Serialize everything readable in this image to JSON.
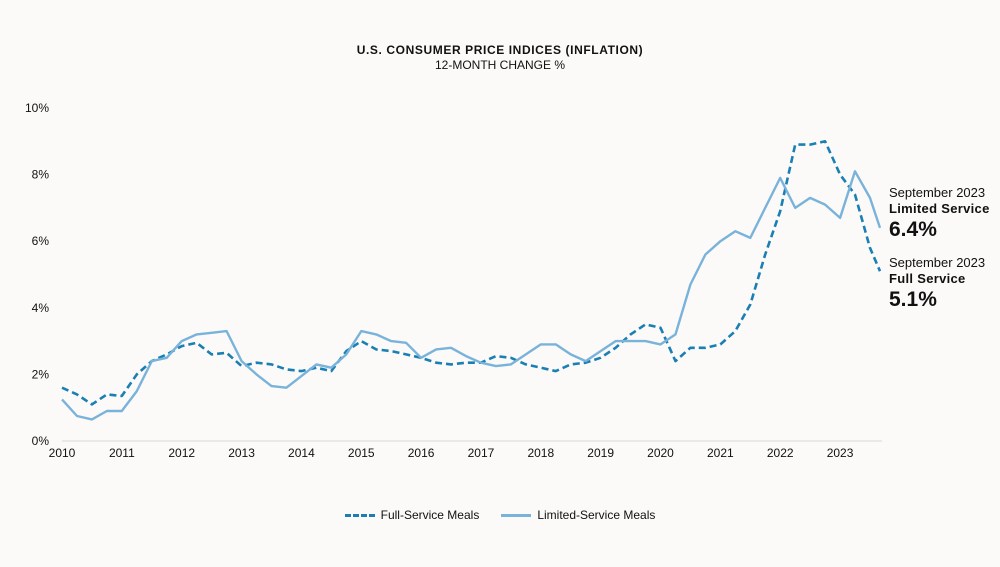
{
  "chart_data": {
    "type": "line",
    "title": "U.S. CONSUMER PRICE INDICES (INFLATION)",
    "subtitle": "12-MONTH CHANGE %",
    "xlabel": "",
    "ylabel": "",
    "ylim": [
      0,
      10
    ],
    "xlim": [
      "2010-01",
      "2023-09"
    ],
    "yticks": [
      "0%",
      "2%",
      "4%",
      "6%",
      "8%",
      "10%"
    ],
    "xticks": [
      "2010",
      "2011",
      "2012",
      "2013",
      "2014",
      "2015",
      "2016",
      "2017",
      "2018",
      "2019",
      "2020",
      "2021",
      "2022",
      "2023"
    ],
    "grid": false,
    "legend_position": "bottom",
    "x": [
      "2010-01",
      "2010-04",
      "2010-07",
      "2010-10",
      "2011-01",
      "2011-04",
      "2011-07",
      "2011-10",
      "2012-01",
      "2012-04",
      "2012-07",
      "2012-10",
      "2013-01",
      "2013-04",
      "2013-07",
      "2013-10",
      "2014-01",
      "2014-04",
      "2014-07",
      "2014-10",
      "2015-01",
      "2015-04",
      "2015-07",
      "2015-10",
      "2016-01",
      "2016-04",
      "2016-07",
      "2016-10",
      "2017-01",
      "2017-04",
      "2017-07",
      "2017-10",
      "2018-01",
      "2018-04",
      "2018-07",
      "2018-10",
      "2019-01",
      "2019-04",
      "2019-07",
      "2019-10",
      "2020-01",
      "2020-04",
      "2020-07",
      "2020-10",
      "2021-01",
      "2021-04",
      "2021-07",
      "2021-10",
      "2022-01",
      "2022-04",
      "2022-07",
      "2022-10",
      "2023-01",
      "2023-04",
      "2023-07",
      "2023-09"
    ],
    "series": [
      {
        "name": "Full-Service Meals",
        "color": "#1a7fb3",
        "style": "dashed",
        "values": [
          1.6,
          1.4,
          1.1,
          1.4,
          1.35,
          2.0,
          2.4,
          2.6,
          2.85,
          2.95,
          2.6,
          2.65,
          2.25,
          2.35,
          2.3,
          2.15,
          2.1,
          2.2,
          2.1,
          2.7,
          3.0,
          2.75,
          2.7,
          2.6,
          2.5,
          2.35,
          2.3,
          2.35,
          2.35,
          2.55,
          2.5,
          2.3,
          2.2,
          2.1,
          2.3,
          2.35,
          2.5,
          2.8,
          3.2,
          3.5,
          3.4,
          2.4,
          2.8,
          2.8,
          2.9,
          3.3,
          4.1,
          5.6,
          6.9,
          8.9,
          8.9,
          9.0,
          8.0,
          7.4,
          5.8,
          5.1
        ]
      },
      {
        "name": "Limited-Service Meals",
        "color": "#7ab3da",
        "style": "solid",
        "values": [
          1.25,
          0.75,
          0.65,
          0.9,
          0.9,
          1.5,
          2.4,
          2.5,
          3.0,
          3.2,
          3.25,
          3.3,
          2.4,
          2.0,
          1.65,
          1.6,
          1.95,
          2.3,
          2.2,
          2.6,
          3.3,
          3.2,
          3.0,
          2.95,
          2.5,
          2.75,
          2.8,
          2.55,
          2.35,
          2.25,
          2.3,
          2.6,
          2.9,
          2.9,
          2.6,
          2.4,
          2.7,
          3.0,
          3.0,
          3.0,
          2.9,
          3.2,
          4.7,
          5.6,
          6.0,
          6.3,
          6.1,
          7.0,
          7.9,
          7.0,
          7.3,
          7.1,
          6.7,
          8.1,
          7.3,
          6.4
        ]
      }
    ],
    "annotations": [
      {
        "date": "September 2023",
        "label": "Limited Service",
        "value": "6.4%"
      },
      {
        "date": "September 2023",
        "label": "Full Service",
        "value": "5.1%"
      }
    ]
  }
}
